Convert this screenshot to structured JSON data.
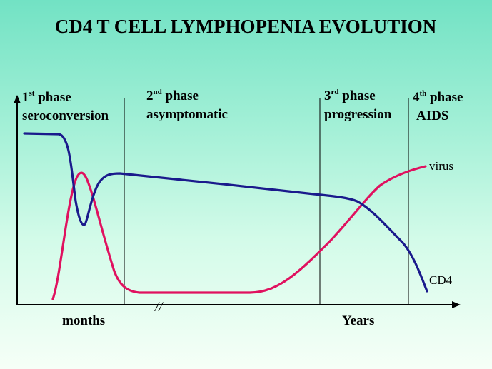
{
  "title": "CD4 T CELL LYMPHOPENIA EVOLUTION",
  "phases": [
    {
      "num": "1",
      "sup": "st",
      "word": "phase",
      "name": "seroconversion"
    },
    {
      "num": "2",
      "sup": "nd",
      "word": "phase",
      "name": "asymptomatic"
    },
    {
      "num": "3",
      "sup": "rd",
      "word": "phase",
      "name": "progression"
    },
    {
      "num": "4",
      "sup": "th",
      "word": "phase",
      "name": "AIDS"
    }
  ],
  "curves": {
    "virus": {
      "label": "virus",
      "color": "#e0115f"
    },
    "cd4": {
      "label": "CD4",
      "color": "#1a1a8c"
    }
  },
  "axis": {
    "left_label": "months",
    "right_label": "Years",
    "break_mark": "//"
  }
}
